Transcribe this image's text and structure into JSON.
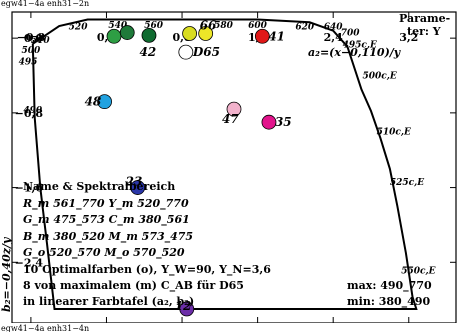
{
  "header_label": "egw41−4a enh31−2n",
  "footer_label": "egw41−4a enh31−4n",
  "chart_data": {
    "type": "scatter",
    "x_axis_label_lines": [
      "Parame-",
      "ter: Y"
    ],
    "x_axis_formula": "a₂=(x−0,110)/y",
    "y_axis_formula": "b₂=−0,40z/y",
    "x_ticks": [
      "−0,8",
      "0,0",
      "0,8",
      "1,6",
      "2,4",
      "3,2"
    ],
    "y_ticks": [
      "0,0",
      "−0,8",
      "−1,6",
      "−2,4"
    ],
    "xlim": [
      -1.0,
      3.7
    ],
    "ylim": [
      -3.05,
      0.28
    ],
    "grid": false,
    "spectral_locus": {
      "color": "#000000",
      "points": [
        [
          -0.78,
          -0.06
        ],
        [
          -0.5,
          0.13
        ],
        [
          -0.2,
          0.2
        ],
        [
          0.2,
          0.2
        ],
        [
          0.6,
          0.2
        ],
        [
          1.0,
          0.2
        ],
        [
          1.6,
          0.2
        ],
        [
          2.15,
          0.17
        ],
        [
          2.4,
          0.08
        ],
        [
          2.55,
          -0.09
        ],
        [
          2.7,
          -0.55
        ],
        [
          2.8,
          -0.78
        ],
        [
          2.9,
          -1.07
        ],
        [
          3.0,
          -1.4
        ],
        [
          3.08,
          -1.8
        ],
        [
          3.17,
          -2.3
        ],
        [
          3.24,
          -2.77
        ],
        [
          3.28,
          -2.9
        ],
        [
          -0.55,
          -2.9
        ],
        [
          -0.63,
          -2.2
        ],
        [
          -0.7,
          -1.6
        ],
        [
          -0.76,
          -0.85
        ],
        [
          -0.78,
          -0.06
        ]
      ],
      "wavelength_labels": [
        {
          "text": "490",
          "a": -0.88,
          "b": -0.8
        },
        {
          "text": "495",
          "a": -0.93,
          "b": -0.28
        },
        {
          "text": "500",
          "a": -0.9,
          "b": -0.16
        },
        {
          "text": "510",
          "a": -0.8,
          "b": -0.05
        },
        {
          "text": "520",
          "a": -0.4,
          "b": 0.09
        },
        {
          "text": "540",
          "a": 0.02,
          "b": 0.11
        },
        {
          "text": "560",
          "a": 0.4,
          "b": 0.11
        },
        {
          "text": "580",
          "a": 1.14,
          "b": 0.11
        },
        {
          "text": "600",
          "a": 1.5,
          "b": 0.11
        },
        {
          "text": "620",
          "a": 2.0,
          "b": 0.09
        },
        {
          "text": "640",
          "a": 2.3,
          "b": 0.09
        },
        {
          "text": "700",
          "a": 2.48,
          "b": 0.03
        },
        {
          "text": "495c,E",
          "a": 2.5,
          "b": -0.1
        },
        {
          "text": "500c,E",
          "a": 2.71,
          "b": -0.43
        },
        {
          "text": "510c,E",
          "a": 2.86,
          "b": -1.03
        },
        {
          "text": "525c,E",
          "a": 3.0,
          "b": -1.57
        },
        {
          "text": "550c,E",
          "a": 3.12,
          "b": -2.52
        }
      ]
    },
    "series": [
      {
        "label": "",
        "a": 0.08,
        "b": 0.02,
        "color": "#2e9e44"
      },
      {
        "label": "",
        "a": 0.22,
        "b": 0.06,
        "color": "#1f7a3a"
      },
      {
        "label": "",
        "a": 0.45,
        "b": 0.03,
        "color": "#0f6b30"
      },
      {
        "label": "",
        "a": 0.88,
        "b": 0.05,
        "color": "#d8dc20"
      },
      {
        "label": "66",
        "a": 1.05,
        "b": 0.05,
        "color": "#ece628"
      },
      {
        "label": "41",
        "a": 1.65,
        "b": 0.02,
        "color": "#e01818"
      },
      {
        "label": "D65",
        "a": 0.84,
        "b": -0.15,
        "color": "#ffffff",
        "stroke": "#000000"
      },
      {
        "label": "48",
        "a": -0.02,
        "b": -0.68,
        "color": "#22a2e0"
      },
      {
        "label": "47",
        "a": 1.35,
        "b": -0.76,
        "color": "#f2b2cc"
      },
      {
        "label": "35",
        "a": 1.72,
        "b": -0.9,
        "color": "#e2148c"
      },
      {
        "label": "23",
        "a": 0.33,
        "b": -1.6,
        "color": "#2a36a8"
      },
      {
        "label": "12",
        "a": 0.85,
        "b": -2.9,
        "color": "#6c2ea8"
      }
    ],
    "point_labels_extra": [
      {
        "text": "42",
        "a": 0.35,
        "b": -0.15
      }
    ],
    "legend_lines": [
      "Name & Spektralbereich",
      "R_m 561_770   Y_m 520_770",
      "G_m 475_573   C_m 380_561",
      "B_m 380_520   M_m 573_475",
      "G_o 520_570   M_o 570_520"
    ],
    "note_lines": [
      "10 Optimalfarben (o), Y_W=90, Y_N=3,6",
      "8 von maximalem (m) C_AB für D65",
      "in linearer Farbtafel (a₂, b₂)"
    ],
    "range_lines": [
      "max: 490_770",
      "min: 380_490"
    ]
  }
}
